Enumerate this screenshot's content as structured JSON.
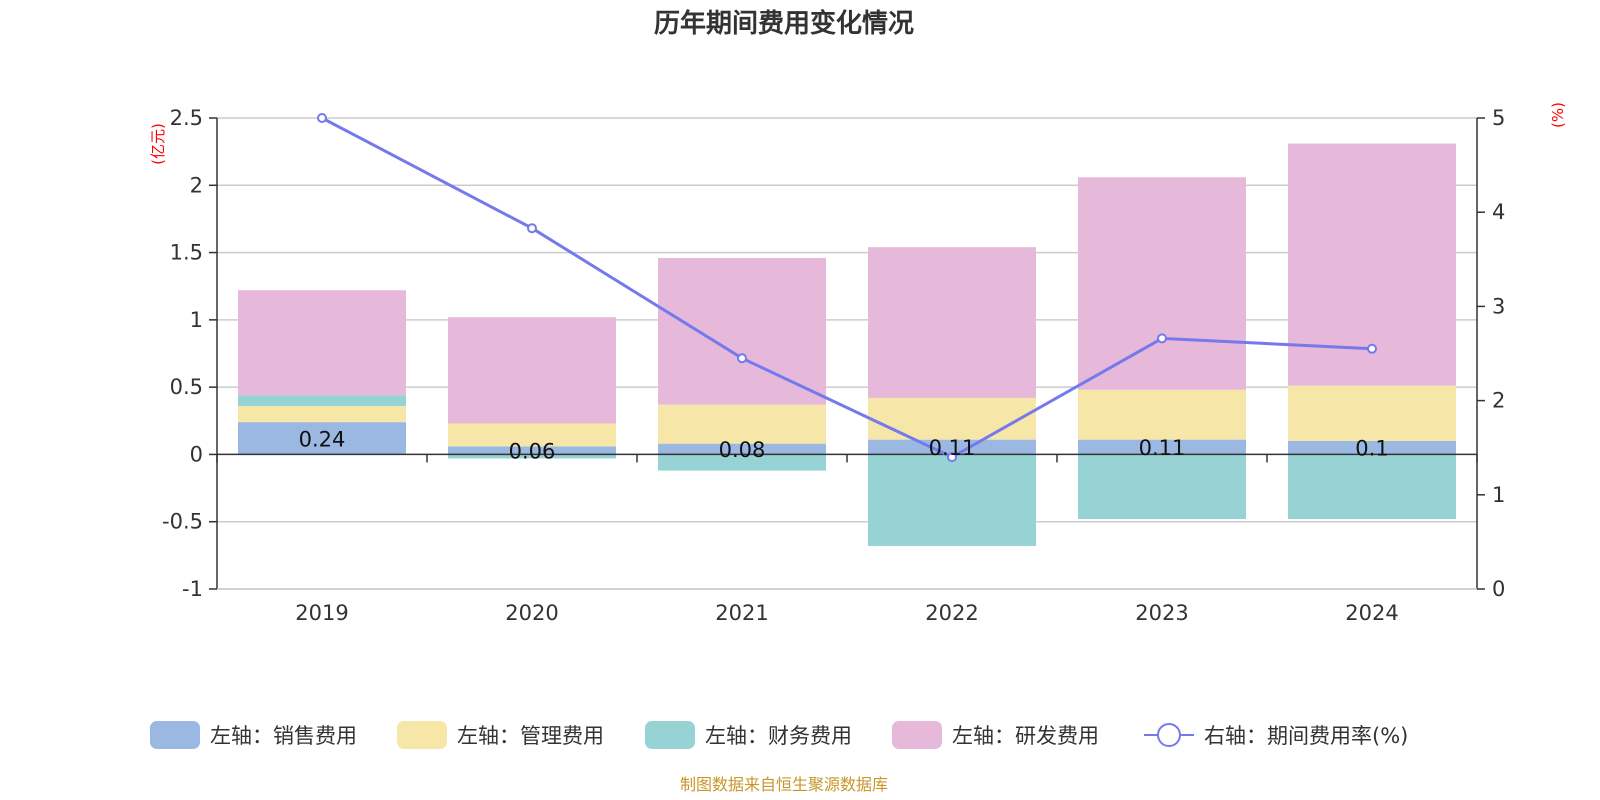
{
  "chart_data": {
    "type": "bar",
    "stacked": true,
    "title": "历年期间费用变化情况",
    "categories": [
      "2019",
      "2020",
      "2021",
      "2022",
      "2023",
      "2024"
    ],
    "left_axis": {
      "unit": "(亿元)",
      "ylim": [
        -1,
        2.5
      ],
      "ticks": [
        2.5,
        2,
        1.5,
        1,
        0.5,
        0,
        -0.5,
        -1
      ],
      "tick_labels": [
        "2.5",
        "2",
        "1.5",
        "1",
        "0.5",
        "0",
        "-0.5",
        "-1"
      ]
    },
    "right_axis": {
      "unit": "(%)",
      "ylim": [
        0,
        5
      ],
      "ticks": [
        5,
        4,
        3,
        2,
        1,
        0
      ],
      "tick_labels": [
        "5",
        "4",
        "3",
        "2",
        "1",
        "0"
      ]
    },
    "series": [
      {
        "name": "左轴：销售费用",
        "axis": "left",
        "type": "bar",
        "color": "#9bb8e2",
        "values": [
          0.24,
          0.06,
          0.08,
          0.11,
          0.11,
          0.1
        ],
        "labels": [
          "0.24",
          "0.06",
          "0.08",
          "0.11",
          "0.11",
          "0.1"
        ]
      },
      {
        "name": "左轴：管理费用",
        "axis": "left",
        "type": "bar",
        "color": "#f6e6a8",
        "values": [
          0.12,
          0.17,
          0.29,
          0.31,
          0.37,
          0.41
        ]
      },
      {
        "name": "左轴：财务费用",
        "axis": "left",
        "type": "bar",
        "color": "#97d3d5",
        "values": [
          0.08,
          -0.03,
          -0.12,
          -0.68,
          -0.48,
          -0.48
        ]
      },
      {
        "name": "左轴：研发费用",
        "axis": "left",
        "type": "bar",
        "color": "#e6b8d9",
        "values": [
          0.78,
          0.79,
          1.09,
          1.12,
          1.58,
          1.8
        ]
      },
      {
        "name": "右轴：期间费用率(%)",
        "axis": "right",
        "type": "line",
        "color": "#7479ec",
        "values": [
          5.0,
          3.83,
          2.45,
          1.4,
          2.66,
          2.55
        ]
      }
    ],
    "source": "制图数据来自恒生聚源数据库"
  }
}
